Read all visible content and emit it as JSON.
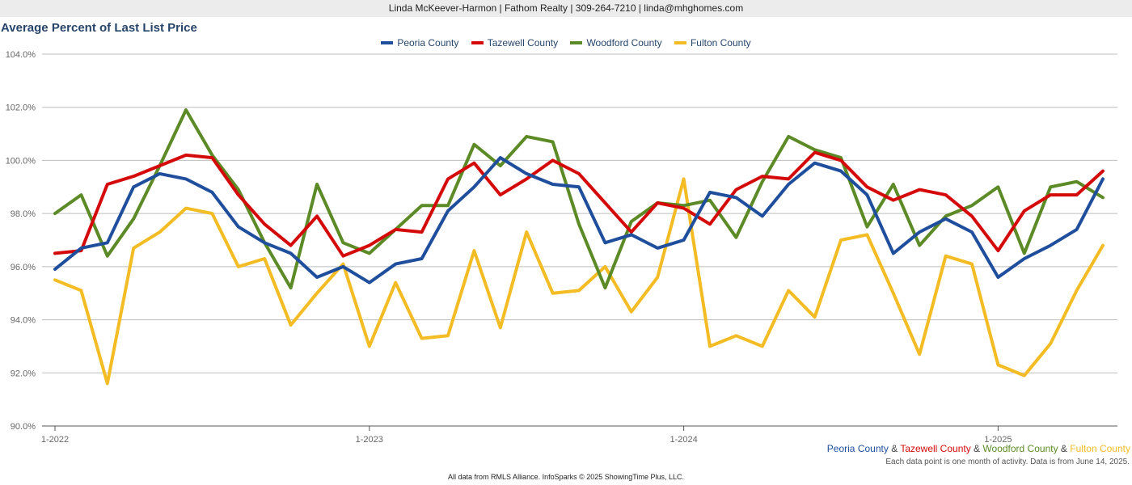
{
  "header": {
    "contact_line": "Linda McKeever-Harmon | Fathom Realty | 309-264-7210 | linda@mhghomes.com"
  },
  "chart_data": {
    "type": "line",
    "title": "Average Percent of Last List Price",
    "xlabel": "",
    "ylabel": "",
    "ylim": [
      90,
      104
    ],
    "y_ticks": [
      "90.0%",
      "92.0%",
      "94.0%",
      "96.0%",
      "98.0%",
      "100.0%",
      "102.0%",
      "104.0%"
    ],
    "x_tick_labels": [
      "1-2022",
      "1-2023",
      "1-2024",
      "1-2025"
    ],
    "x_start": "2022-01",
    "legend_position": "top-center",
    "grid": true,
    "series": [
      {
        "name": "Peoria County",
        "color": "#1f4e9c",
        "values": [
          95.9,
          96.7,
          96.9,
          99.0,
          99.5,
          99.3,
          98.8,
          97.5,
          96.9,
          96.5,
          95.6,
          96.0,
          95.4,
          96.1,
          96.3,
          98.1,
          99.0,
          100.1,
          99.5,
          99.1,
          99.0,
          96.9,
          97.2,
          96.7,
          97.0,
          98.8,
          98.6,
          97.9,
          99.1,
          99.9,
          99.6,
          98.7,
          96.5,
          97.3,
          97.8,
          97.3,
          95.6,
          96.3,
          96.8,
          97.4,
          99.3
        ]
      },
      {
        "name": "Tazewell County",
        "color": "#d40a0a",
        "values": [
          96.5,
          96.6,
          99.1,
          99.4,
          99.8,
          100.2,
          100.1,
          98.7,
          97.6,
          96.8,
          97.9,
          96.4,
          96.8,
          97.4,
          97.3,
          99.3,
          99.9,
          98.7,
          99.3,
          100.0,
          99.5,
          98.4,
          97.3,
          98.4,
          98.2,
          97.6,
          98.9,
          99.4,
          99.3,
          100.3,
          100.0,
          99.0,
          98.5,
          98.9,
          98.7,
          97.9,
          96.6,
          98.1,
          98.7,
          98.7,
          99.6
        ]
      },
      {
        "name": "Woodford County",
        "color": "#5b8a26",
        "values": [
          98.0,
          98.7,
          96.4,
          97.8,
          99.8,
          101.9,
          100.2,
          98.9,
          96.9,
          95.2,
          99.1,
          96.9,
          96.5,
          97.4,
          98.3,
          98.3,
          100.6,
          99.8,
          100.9,
          100.7,
          97.6,
          95.2,
          97.7,
          98.4,
          98.3,
          98.5,
          97.1,
          99.2,
          100.9,
          100.4,
          100.1,
          97.5,
          99.1,
          96.8,
          97.9,
          98.3,
          99.0,
          96.5,
          99.0,
          99.2,
          98.6
        ]
      },
      {
        "name": "Fulton County",
        "color": "#f4bc24",
        "values": [
          95.5,
          95.1,
          91.6,
          96.7,
          97.3,
          98.2,
          98.0,
          96.0,
          96.3,
          93.8,
          95.0,
          96.1,
          93.0,
          95.4,
          93.3,
          93.4,
          96.6,
          93.7,
          97.3,
          95.0,
          95.1,
          96.0,
          94.3,
          95.6,
          99.3,
          93.0,
          93.4,
          93.0,
          95.1,
          94.1,
          97.0,
          97.2,
          95.0,
          92.7,
          96.4,
          96.1,
          92.3,
          91.9,
          93.1,
          95.1,
          96.8
        ]
      }
    ]
  },
  "footer": {
    "amp": "&",
    "note": "Each data point is one month of activity. Data is from June 14, 2025.",
    "credit": "All data from RMLS Alliance. InfoSparks © 2025 ShowingTime Plus, LLC."
  }
}
